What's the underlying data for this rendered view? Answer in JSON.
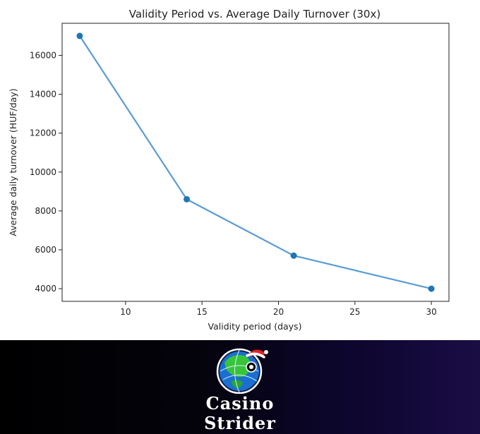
{
  "chart_data": {
    "type": "line",
    "title": "Validity Period vs. Average Daily Turnover (30x)",
    "xlabel": "Validity period (days)",
    "ylabel": "Average daily turnover (HUF/day)",
    "x": [
      7,
      14,
      21,
      30
    ],
    "series": [
      {
        "values": [
          17000,
          8600,
          5700,
          4000
        ]
      }
    ],
    "xlim": [
      5.85,
      31.15
    ],
    "ylim": [
      3350,
      17650
    ],
    "xticks": [
      10,
      15,
      20,
      25,
      30
    ],
    "yticks": [
      4000,
      6000,
      8000,
      10000,
      12000,
      14000,
      16000
    ],
    "grid": false,
    "marker": "circle",
    "line_color": "#5b9bd5",
    "marker_color": "#1f77b4"
  },
  "brand": {
    "line1": "Casino",
    "line2": "Strider",
    "logo_icon": "globe-with-santa-hat-icon",
    "colors": {
      "banner_start": "#000000",
      "banner_end": "#1a0d45",
      "text": "#ffffff"
    }
  }
}
